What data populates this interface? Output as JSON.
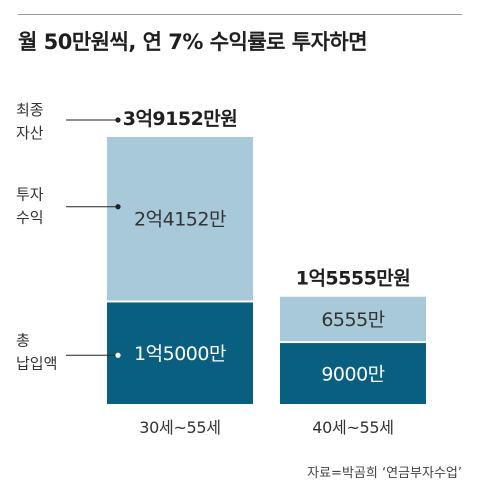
{
  "title": "월 50만원씩, 연 7% 수익률로 투자하면",
  "source": "자료=박곰희 ‘연금부자수업’",
  "colors": {
    "invest": "#a8c9d9",
    "principal": "#085f80",
    "invest_text": "#333333",
    "principal_text": "#ffffff"
  },
  "chart_data": {
    "type": "bar",
    "stacked": true,
    "categories": [
      "30세~55세",
      "40세~55세"
    ],
    "series": [
      {
        "name": "총\n납입액",
        "values": [
          15000,
          9000
        ],
        "labels": [
          "1억5000만",
          "9000만"
        ]
      },
      {
        "name": "투자\n수익",
        "values": [
          24152,
          6555
        ],
        "labels": [
          "2억4152만",
          "6555만"
        ]
      }
    ],
    "totals": [
      39152,
      15555
    ],
    "total_labels": [
      "3억9152만원",
      "1억5555만원"
    ],
    "annotations": {
      "total": "최종\n자산",
      "invest": "투자\n수익",
      "principal": "총\n납입액"
    },
    "unit": "만원"
  }
}
